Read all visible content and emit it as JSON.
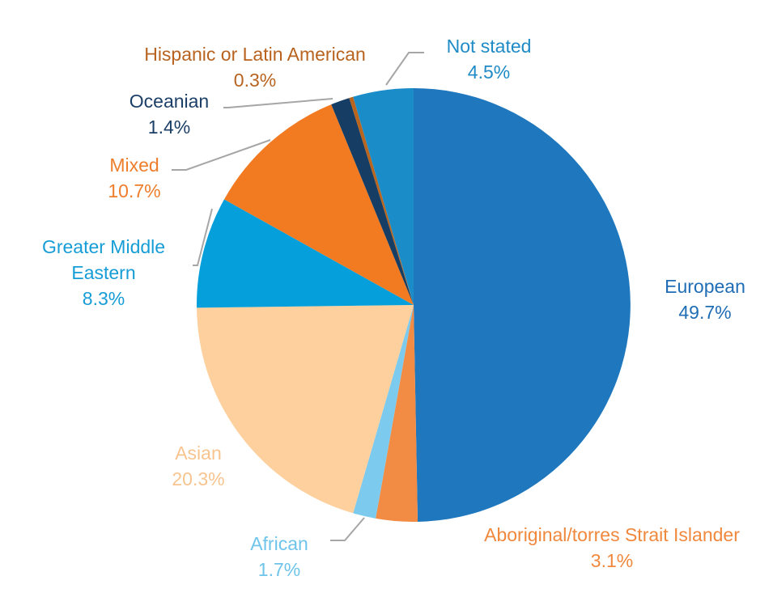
{
  "chart_data": {
    "type": "pie",
    "start_angle_deg": 0,
    "direction": "clockwise",
    "slices": [
      {
        "label": "European",
        "value": 49.7,
        "value_label": "49.7%",
        "color": "#1f77bd",
        "label_color": "#1f6db4"
      },
      {
        "label": "Aboriginal/torres Strait Islander",
        "value": 3.1,
        "value_label": "3.1%",
        "color": "#f28c45",
        "label_color": "#f0883d"
      },
      {
        "label": "African",
        "value": 1.7,
        "value_label": "1.7%",
        "color": "#7ccbee",
        "label_color": "#6ec4ea"
      },
      {
        "label": "Asian",
        "value": 20.3,
        "value_label": "20.3%",
        "color": "#fdd09e",
        "label_color": "#f7c48f"
      },
      {
        "label": "Greater Middle Eastern",
        "label_lines": [
          "Greater Middle",
          "Eastern"
        ],
        "value": 8.3,
        "value_label": "8.3%",
        "color": "#05a0db",
        "label_color": "#169dd6"
      },
      {
        "label": "Mixed",
        "value": 10.7,
        "value_label": "10.7%",
        "color": "#f27b22",
        "label_color": "#ee7e2c"
      },
      {
        "label": "Oceanian",
        "value": 1.4,
        "value_label": "1.4%",
        "color": "#163d63",
        "label_color": "#1b3f66"
      },
      {
        "label": "Hispanic or Latin American",
        "value": 0.3,
        "value_label": "0.3%",
        "color": "#b9651e",
        "label_color": "#b8631f"
      },
      {
        "label": "Not stated",
        "value": 4.5,
        "value_label": "4.5%",
        "color": "#1a8cc8",
        "label_color": "#1f8ac6"
      }
    ]
  }
}
